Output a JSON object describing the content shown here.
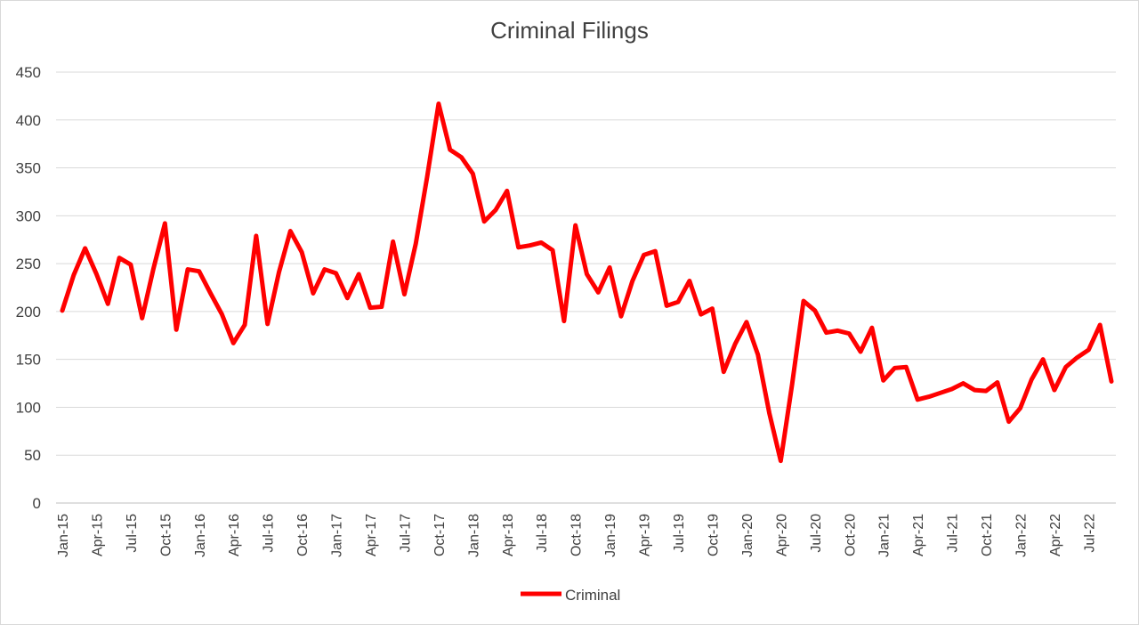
{
  "chart_data": {
    "type": "line",
    "title": "Criminal Filings",
    "xlabel": "",
    "ylabel": "",
    "ylim": [
      0,
      450
    ],
    "yticks": [
      0,
      50,
      100,
      150,
      200,
      250,
      300,
      350,
      400,
      450
    ],
    "grid": "horizontal",
    "legend_position": "bottom",
    "x": [
      "Jan-15",
      "Feb-15",
      "Mar-15",
      "Apr-15",
      "May-15",
      "Jun-15",
      "Jul-15",
      "Aug-15",
      "Sep-15",
      "Oct-15",
      "Nov-15",
      "Dec-15",
      "Jan-16",
      "Feb-16",
      "Mar-16",
      "Apr-16",
      "May-16",
      "Jun-16",
      "Jul-16",
      "Aug-16",
      "Sep-16",
      "Oct-16",
      "Nov-16",
      "Dec-16",
      "Jan-17",
      "Feb-17",
      "Mar-17",
      "Apr-17",
      "May-17",
      "Jun-17",
      "Jul-17",
      "Aug-17",
      "Sep-17",
      "Oct-17",
      "Nov-17",
      "Dec-17",
      "Jan-18",
      "Feb-18",
      "Mar-18",
      "Apr-18",
      "May-18",
      "Jun-18",
      "Jul-18",
      "Aug-18",
      "Sep-18",
      "Oct-18",
      "Nov-18",
      "Dec-18",
      "Jan-19",
      "Feb-19",
      "Mar-19",
      "Apr-19",
      "May-19",
      "Jun-19",
      "Jul-19",
      "Aug-19",
      "Sep-19",
      "Oct-19",
      "Nov-19",
      "Dec-19",
      "Jan-20",
      "Feb-20",
      "Mar-20",
      "Apr-20",
      "May-20",
      "Jun-20",
      "Jul-20",
      "Aug-20",
      "Sep-20",
      "Oct-20",
      "Nov-20",
      "Dec-20",
      "Jan-21",
      "Feb-21",
      "Mar-21",
      "Apr-21",
      "May-21",
      "Jun-21",
      "Jul-21",
      "Aug-21",
      "Sep-21",
      "Oct-21",
      "Nov-21",
      "Dec-21",
      "Jan-22",
      "Feb-22",
      "Mar-22",
      "Apr-22",
      "May-22",
      "Jun-22",
      "Jul-22",
      "Aug-22",
      "Sep-22"
    ],
    "xtick_labels": [
      "Jan-15",
      "Apr-15",
      "Jul-15",
      "Oct-15",
      "Jan-16",
      "Apr-16",
      "Jul-16",
      "Oct-16",
      "Jan-17",
      "Apr-17",
      "Jul-17",
      "Oct-17",
      "Jan-18",
      "Apr-18",
      "Jul-18",
      "Oct-18",
      "Jan-19",
      "Apr-19",
      "Jul-19",
      "Oct-19",
      "Jan-20",
      "Apr-20",
      "Jul-20",
      "Oct-20",
      "Jan-21",
      "Apr-21",
      "Jul-21",
      "Oct-21",
      "Jan-22",
      "Apr-22",
      "Jul-22"
    ],
    "series": [
      {
        "name": "Criminal",
        "color": "#ff0000",
        "values": [
          201,
          238,
          266,
          239,
          208,
          256,
          249,
          193,
          245,
          292,
          181,
          244,
          242,
          219,
          197,
          167,
          186,
          279,
          187,
          241,
          284,
          262,
          219,
          244,
          240,
          214,
          239,
          204,
          205,
          273,
          218,
          271,
          341,
          417,
          369,
          361,
          344,
          294,
          306,
          326,
          267,
          269,
          272,
          264,
          190,
          290,
          239,
          220,
          246,
          195,
          232,
          259,
          263,
          206,
          210,
          232,
          197,
          203,
          137,
          166,
          189,
          155,
          94,
          44,
          124,
          211,
          201,
          178,
          180,
          177,
          158,
          183,
          128,
          141,
          142,
          108,
          111,
          115,
          119,
          125,
          118,
          117,
          126,
          85,
          99,
          129,
          150,
          118,
          142,
          152,
          160,
          186,
          127
        ]
      }
    ]
  }
}
